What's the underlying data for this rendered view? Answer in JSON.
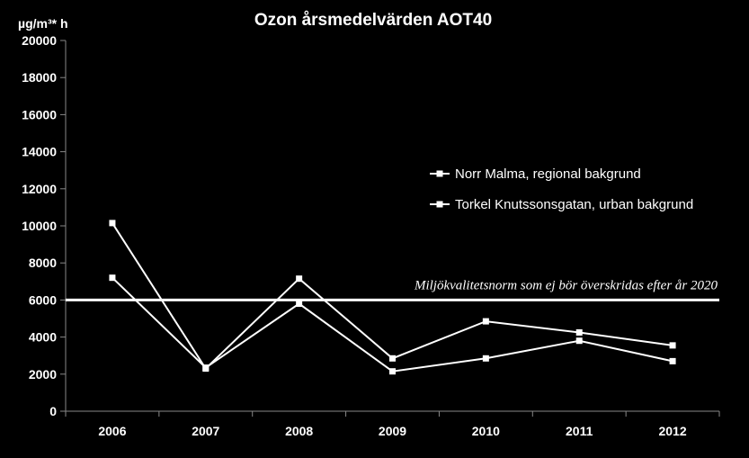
{
  "chart_data": {
    "type": "line",
    "title": "Ozon årsmedelvärden AOT40",
    "ylabel": "µg/m³* h",
    "xlabel": "",
    "categories": [
      "2006",
      "2007",
      "2008",
      "2009",
      "2010",
      "2011",
      "2012"
    ],
    "ylim": [
      0,
      20000
    ],
    "yticks": [
      "0",
      "2000",
      "4000",
      "6000",
      "8000",
      "10000",
      "12000",
      "14000",
      "16000",
      "18000",
      "20000"
    ],
    "grid": false,
    "legend_position": "right",
    "series": [
      {
        "name": "Norr Malma, regional bakgrund",
        "values": [
          10150,
          2300,
          7150,
          2850,
          4850,
          4250,
          3550
        ],
        "color": "#ffffff"
      },
      {
        "name": "Torkel Knutssonsgatan, urban bakgrund",
        "values": [
          7200,
          2350,
          5800,
          2150,
          2850,
          3800,
          2700
        ],
        "color": "#ffffff"
      }
    ],
    "reference_line": {
      "value": 6000,
      "label": "Miljökvalitetsnorm som ej bör överskridas efter år 2020",
      "color": "#ffffff"
    }
  }
}
